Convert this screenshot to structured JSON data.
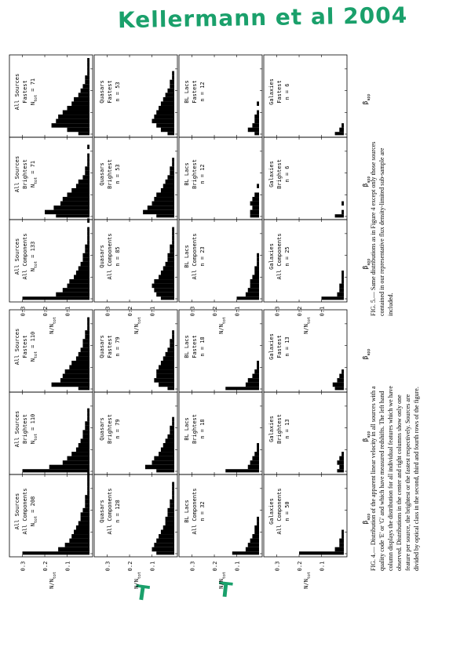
{
  "handwritten_note": "Kellermann et al 2004",
  "margin_marks": [
    "T",
    "T"
  ],
  "figures": [
    {
      "id": "fig5",
      "ylabel": "N/N",
      "ylabel_sub": "tot",
      "xlabel": "β",
      "xlabel_sub": "app",
      "ytick_labels": [
        "0.1",
        "0.2",
        "0.3"
      ],
      "xtick_labels": [
        "0",
        "10",
        "20",
        "30"
      ],
      "caption": "FIG. 5.— Same distributions as in Figure 4 except only those sources contained in our representative flux density-limited sub-sample are included.",
      "rows": [
        [
          {
            "l1": "All Sources",
            "l2": "All Components",
            "l3": "N",
            "l3sub": "tot",
            "l3val": " = 133",
            "bars": [
              0.3,
              0.15,
              0.12,
              0.1,
              0.09,
              0.07,
              0.06,
              0.05,
              0.04,
              0.03,
              0.03,
              0.02,
              0.02,
              0.01,
              0.01,
              0.01,
              0.01,
              0.0,
              0.01
            ]
          },
          {
            "l1": "All Sources",
            "l2": "Brightest",
            "l3": "N",
            "l3sub": "tot",
            "l3val": " = 71",
            "bars": [
              0.15,
              0.2,
              0.16,
              0.13,
              0.12,
              0.1,
              0.08,
              0.06,
              0.05,
              0.03,
              0.02,
              0.02,
              0.01,
              0.01,
              0.01,
              0.0,
              0.01
            ]
          },
          {
            "l1": "All Sources",
            "l2": "Fastest",
            "l3": "N",
            "l3sub": "tot",
            "l3val": " = 71",
            "bars": [
              0.05,
              0.1,
              0.17,
              0.15,
              0.14,
              0.12,
              0.1,
              0.08,
              0.07,
              0.05,
              0.04,
              0.03,
              0.02,
              0.02,
              0.01,
              0.01,
              0.01,
              0.01
            ]
          }
        ],
        [
          {
            "l1": "Quasars",
            "l2": "All Components",
            "l3": "n = 85",
            "l3sub": "",
            "l3val": "",
            "bars": [
              0.06,
              0.08,
              0.09,
              0.1,
              0.09,
              0.07,
              0.06,
              0.05,
              0.04,
              0.03,
              0.03,
              0.02,
              0.02,
              0.01,
              0.01,
              0.01,
              0.01
            ]
          },
          {
            "l1": "Quasars",
            "l2": "Brightest",
            "l3": "n = 53",
            "l3sub": "",
            "l3val": "",
            "bars": [
              0.08,
              0.14,
              0.12,
              0.1,
              0.09,
              0.08,
              0.06,
              0.05,
              0.04,
              0.03,
              0.02,
              0.02,
              0.01,
              0.01
            ]
          },
          {
            "l1": "Quasars",
            "l2": "Fastest",
            "l3": "n = 53",
            "l3sub": "",
            "l3val": "",
            "bars": [
              0.03,
              0.06,
              0.08,
              0.1,
              0.09,
              0.08,
              0.07,
              0.06,
              0.05,
              0.04,
              0.03,
              0.02,
              0.02,
              0.01,
              0.01
            ]
          }
        ],
        [
          {
            "l1": "BL Lacs",
            "l2": "All Components",
            "l3": "n = 23",
            "l3sub": "",
            "l3val": "",
            "bars": [
              0.1,
              0.06,
              0.05,
              0.04,
              0.04,
              0.03,
              0.02,
              0.02,
              0.01,
              0.01,
              0.01
            ]
          },
          {
            "l1": "BL Lacs",
            "l2": "Brightest",
            "l3": "n = 12",
            "l3sub": "",
            "l3val": "",
            "bars": [
              0.04,
              0.04,
              0.03,
              0.04,
              0.03,
              0.02,
              0.0,
              0.01
            ]
          },
          {
            "l1": "BL Lacs",
            "l2": "Fastest",
            "l3": "n = 12",
            "l3sub": "",
            "l3val": "",
            "bars": [
              0.02,
              0.05,
              0.03,
              0.02,
              0.02,
              0.01,
              0.0,
              0.01
            ]
          }
        ],
        [
          {
            "l1": "Galaxies",
            "l2": "All Components",
            "l3": "n = 25",
            "l3sub": "",
            "l3val": "",
            "bars": [
              0.1,
              0.03,
              0.02,
              0.02,
              0.01,
              0.01,
              0.01
            ]
          },
          {
            "l1": "Galaxies",
            "l2": "Brightest",
            "l3": "n = 6",
            "l3sub": "",
            "l3val": "",
            "bars": [
              0.04,
              0.01,
              0.0,
              0.01
            ]
          },
          {
            "l1": "Galaxies",
            "l2": "Fastest",
            "l3": "n = 6",
            "l3sub": "",
            "l3val": "",
            "bars": [
              0.04,
              0.02,
              0.01
            ]
          }
        ]
      ]
    },
    {
      "id": "fig4",
      "ylabel": "N/N",
      "ylabel_sub": "tot",
      "xlabel": "β",
      "xlabel_sub": "app",
      "ytick_labels": [
        "0.1",
        "0.2",
        "0.3"
      ],
      "xtick_labels": [
        "0",
        "10",
        "20",
        "30"
      ],
      "caption": "FIG. 4.— Distribution of the apparent linear velocity in all sources with a quality code 'E' or 'G' and which have measured redshifts. The left hand column displays the distribution for all individual features which we have observed. Distributions in the center and right columns show only one feature per source, the brightest or the fastest respectively. Sources are divided by optical class in the second, third and fourth rows of the figure.",
      "rows": [
        [
          {
            "l1": "All Sources",
            "l2": "All Components",
            "l3": "N",
            "l3sub": "tot",
            "l3val": " = 208",
            "bars": [
              0.3,
              0.14,
              0.11,
              0.09,
              0.08,
              0.07,
              0.06,
              0.05,
              0.04,
              0.04,
              0.03,
              0.02,
              0.02,
              0.02,
              0.01,
              0.01,
              0.01,
              0.01,
              0.01,
              0.01
            ]
          },
          {
            "l1": "All Sources",
            "l2": "Brightest",
            "l3": "N",
            "l3sub": "tot",
            "l3val": " = 110",
            "bars": [
              0.3,
              0.18,
              0.12,
              0.1,
              0.08,
              0.06,
              0.05,
              0.04,
              0.03,
              0.03,
              0.02,
              0.02,
              0.01,
              0.01,
              0.01
            ]
          },
          {
            "l1": "All Sources",
            "l2": "Fastest",
            "l3": "N",
            "l3sub": "tot",
            "l3val": " = 110",
            "bars": [
              0.05,
              0.17,
              0.13,
              0.12,
              0.11,
              0.09,
              0.08,
              0.06,
              0.05,
              0.04,
              0.03,
              0.03,
              0.02,
              0.02,
              0.01,
              0.01,
              0.01
            ]
          }
        ],
        [
          {
            "l1": "Quasars",
            "l2": "All Components",
            "l3": "n = 128",
            "l3sub": "",
            "l3val": "",
            "bars": [
              0.08,
              0.1,
              0.09,
              0.08,
              0.07,
              0.06,
              0.05,
              0.04,
              0.04,
              0.03,
              0.03,
              0.02,
              0.02,
              0.01,
              0.01,
              0.01,
              0.01
            ]
          },
          {
            "l1": "Quasars",
            "l2": "Brightest",
            "l3": "n = 79",
            "l3sub": "",
            "l3val": "",
            "bars": [
              0.08,
              0.13,
              0.1,
              0.09,
              0.07,
              0.06,
              0.05,
              0.04,
              0.03,
              0.02,
              0.02,
              0.01,
              0.01
            ]
          },
          {
            "l1": "Quasars",
            "l2": "Fastest",
            "l3": "n = 79",
            "l3sub": "",
            "l3val": "",
            "bars": [
              0.03,
              0.07,
              0.09,
              0.08,
              0.08,
              0.07,
              0.06,
              0.05,
              0.04,
              0.03,
              0.02,
              0.02,
              0.01,
              0.01
            ]
          }
        ],
        [
          {
            "l1": "BL Lacs",
            "l2": "All Components",
            "l3": "n = 32",
            "l3sub": "",
            "l3val": "",
            "bars": [
              0.12,
              0.06,
              0.05,
              0.04,
              0.03,
              0.02,
              0.02,
              0.01,
              0.01
            ]
          },
          {
            "l1": "BL Lacs",
            "l2": "Brightest",
            "l3": "n = 18",
            "l3sub": "",
            "l3val": "",
            "bars": [
              0.15,
              0.05,
              0.04,
              0.03,
              0.02,
              0.01,
              0.01
            ]
          },
          {
            "l1": "BL Lacs",
            "l2": "Fastest",
            "l3": "n = 18",
            "l3sub": "",
            "l3val": "",
            "bars": [
              0.15,
              0.06,
              0.05,
              0.03,
              0.02,
              0.01,
              0.01
            ]
          }
        ],
        [
          {
            "l1": "Galaxies",
            "l2": "All Components",
            "l3": "n = 50",
            "l3sub": "",
            "l3val": "",
            "bars": [
              0.2,
              0.04,
              0.02,
              0.02,
              0.01,
              0.01
            ]
          },
          {
            "l1": "Galaxies",
            "l2": "Brightest",
            "l3": "n = 13",
            "l3sub": "",
            "l3val": "",
            "bars": [
              0.03,
              0.02,
              0.03,
              0.02,
              0.01
            ]
          },
          {
            "l1": "Galaxies",
            "l2": "Fastest",
            "l3": "n = 13",
            "l3sub": "",
            "l3val": "",
            "bars": [
              0.04,
              0.05,
              0.03,
              0.02,
              0.01
            ]
          }
        ]
      ]
    }
  ]
}
